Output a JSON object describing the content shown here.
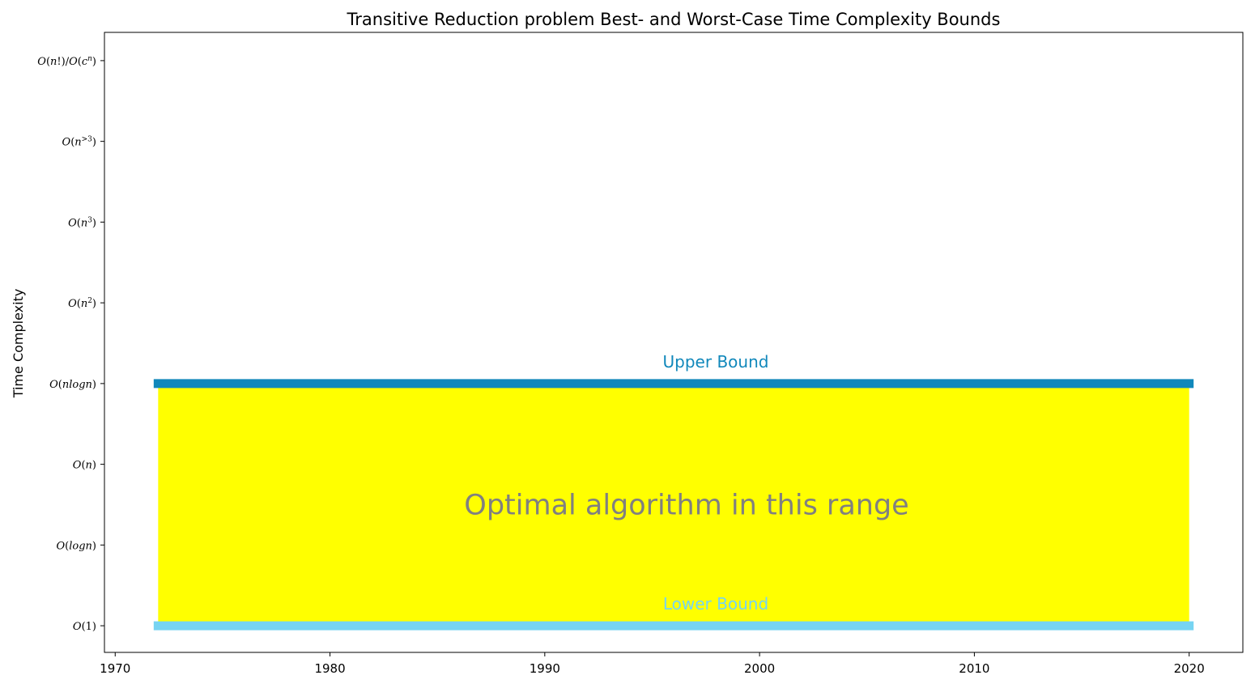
{
  "chart_data": {
    "type": "area",
    "title": "Transitive Reduction problem Best- and Worst-Case Time Complexity Bounds",
    "xlabel": "",
    "ylabel": "Time Complexity",
    "xlim": [
      1969.5,
      2022.5
    ],
    "ylim": [
      -0.33,
      7.35
    ],
    "x_ticks": [
      1970,
      1980,
      1990,
      2000,
      2010,
      2020
    ],
    "y_ticks": [
      {
        "value": 0,
        "label": "O(1)"
      },
      {
        "value": 1,
        "label": "O(logn)"
      },
      {
        "value": 2,
        "label": "O(n)"
      },
      {
        "value": 3,
        "label": "O(nlogn)"
      },
      {
        "value": 4,
        "label": "O(n2)"
      },
      {
        "value": 5,
        "label": "O(n3)"
      },
      {
        "value": 6,
        "label": "O(n>3)"
      },
      {
        "value": 7,
        "label": "O(n!)/O(cn)"
      }
    ],
    "grid": false,
    "legend": "none",
    "series": [
      {
        "name": "Upper Bound",
        "x": [
          1972,
          2020
        ],
        "y": [
          3,
          3
        ],
        "color": "#1188bb"
      },
      {
        "name": "Lower Bound",
        "x": [
          1972,
          2020
        ],
        "y": [
          0,
          0
        ],
        "color": "#77d4f2"
      }
    ],
    "fill": {
      "x": [
        1972,
        2020
      ],
      "y_low": 0,
      "y_high": 3,
      "color": "#ffff00"
    },
    "annotation": {
      "text": "Optimal algorithm in this range",
      "color": "#808080"
    }
  }
}
